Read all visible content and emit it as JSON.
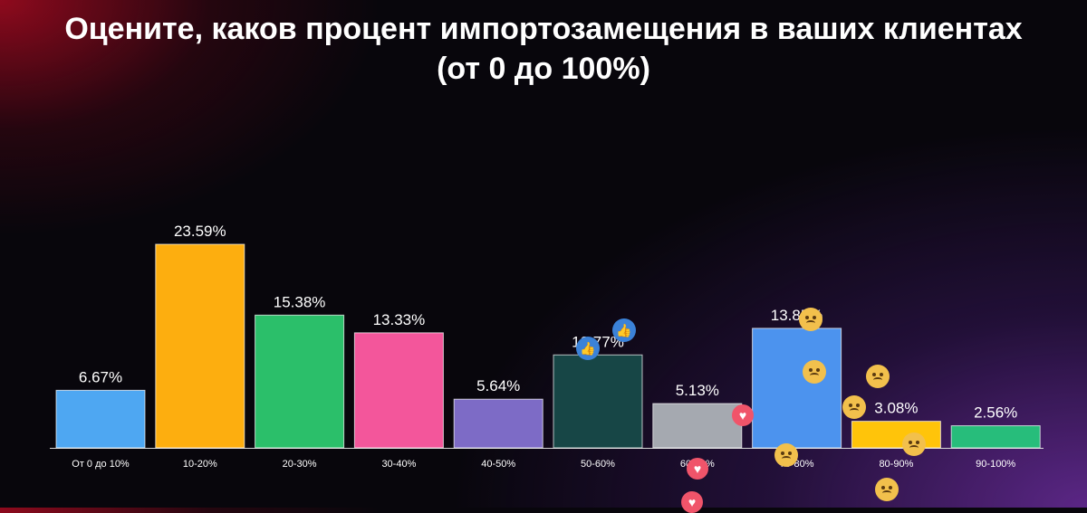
{
  "title_line1": "Оцените, каков процент импортозамещения в ваших клиентах",
  "title_line2": "(от 0 до 100%)",
  "chart_data": {
    "type": "bar",
    "categories": [
      "От 0 до 10%",
      "10-20%",
      "20-30%",
      "30-40%",
      "40-50%",
      "50-60%",
      "60-70%",
      "70-80%",
      "80-90%",
      "90-100%"
    ],
    "values": [
      6.67,
      23.59,
      15.38,
      13.33,
      5.64,
      10.77,
      5.13,
      13.85,
      3.08,
      2.56
    ],
    "value_labels": [
      "6.67%",
      "23.59%",
      "15.38%",
      "13.33%",
      "5.64%",
      "10.77%",
      "5.13%",
      "13.85%",
      "3.08%",
      "2.56%"
    ],
    "colors": [
      "#4ea7f2",
      "#fdae0f",
      "#2bbf6a",
      "#f3569b",
      "#7d6bc6",
      "#174646",
      "#a5a9b0",
      "#4c93ee",
      "#ffc40a",
      "#27bd7b"
    ],
    "xlabel": "",
    "ylabel": "",
    "ylim": [
      0,
      23.59
    ],
    "grid": false,
    "legend": "none"
  },
  "reactions": [
    "like-icon",
    "like-icon",
    "heart-icon",
    "heart-icon",
    "heart-icon",
    "sad-face-icon",
    "sad-face-icon",
    "sad-face-icon",
    "sad-face-icon",
    "laugh-face-icon",
    "wow-face-icon"
  ]
}
